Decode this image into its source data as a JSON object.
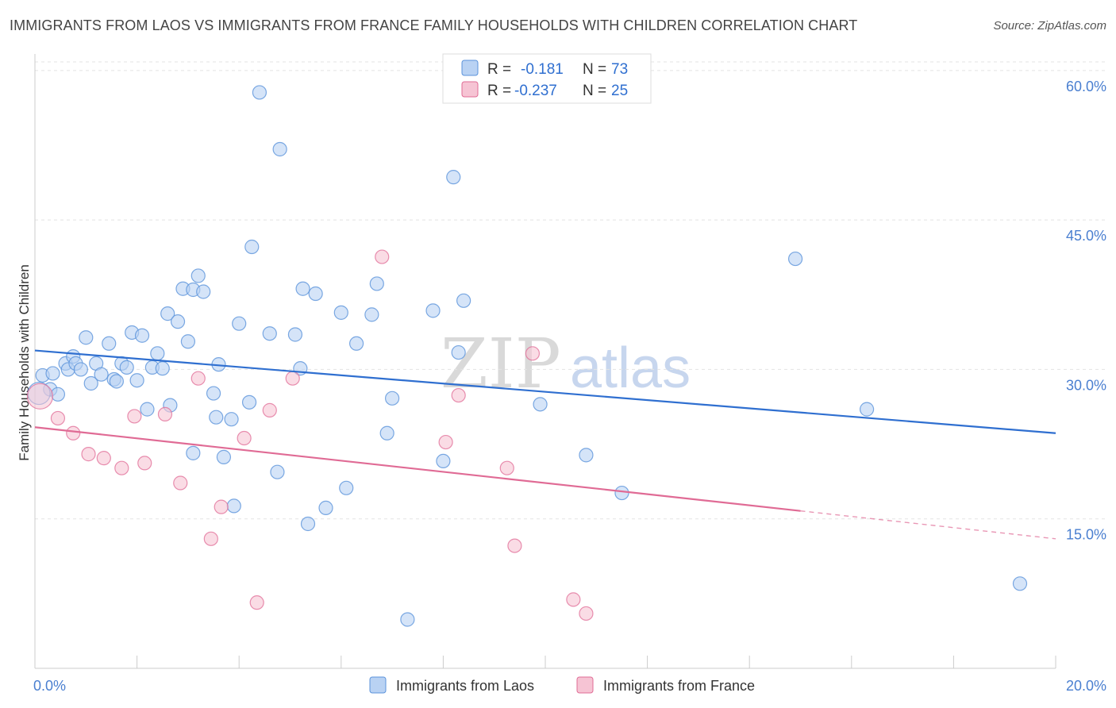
{
  "title": "IMMIGRANTS FROM LAOS VS IMMIGRANTS FROM FRANCE FAMILY HOUSEHOLDS WITH CHILDREN CORRELATION CHART",
  "source": "Source: ZipAtlas.com",
  "watermark": {
    "zip": "ZIP",
    "atlas": "atlas"
  },
  "colors": {
    "laos": "#5b93db",
    "laos_fill": "#b9d2f3",
    "france": "#e06b95",
    "france_fill": "#f6c4d4",
    "axis_label": "#4a7fd0"
  },
  "stats": [
    {
      "r_label": "R =",
      "r_value": "-0.181",
      "n_label": "N =",
      "n_value": "73"
    },
    {
      "r_label": "R =",
      "r_value": "-0.237",
      "n_label": "N =",
      "n_value": "25"
    }
  ],
  "chart_data": {
    "type": "scatter",
    "title": "IMMIGRANTS FROM LAOS VS IMMIGRANTS FROM FRANCE FAMILY HOUSEHOLDS WITH CHILDREN CORRELATION CHART",
    "xlabel": "",
    "ylabel": "Family Households with Children",
    "xlim": [
      0,
      20
    ],
    "ylim": [
      0,
      61.5
    ],
    "x_tick_labels": [
      "0.0%",
      "20.0%"
    ],
    "y_ticks": [
      15,
      30,
      45,
      60
    ],
    "y_tick_labels": [
      "15.0%",
      "30.0%",
      "45.0%",
      "60.0%"
    ],
    "legend_position": "bottom",
    "series": [
      {
        "name": "Immigrants from Laos",
        "trend": {
          "x": [
            0,
            20
          ],
          "y": [
            31.9,
            23.6
          ]
        },
        "points": [
          [
            0.15,
            29.4
          ],
          [
            0.3,
            28.0
          ],
          [
            0.35,
            29.6
          ],
          [
            0.45,
            27.5
          ],
          [
            0.6,
            30.6
          ],
          [
            0.65,
            30.0
          ],
          [
            0.75,
            31.3
          ],
          [
            0.8,
            30.6
          ],
          [
            0.9,
            30.0
          ],
          [
            1.0,
            33.2
          ],
          [
            1.1,
            28.6
          ],
          [
            1.2,
            30.6
          ],
          [
            1.3,
            29.5
          ],
          [
            1.45,
            32.6
          ],
          [
            1.55,
            29.0
          ],
          [
            1.6,
            28.8
          ],
          [
            1.7,
            30.6
          ],
          [
            1.8,
            30.2
          ],
          [
            1.9,
            33.7
          ],
          [
            2.0,
            28.9
          ],
          [
            2.1,
            33.4
          ],
          [
            2.2,
            26.0
          ],
          [
            2.3,
            30.2
          ],
          [
            2.4,
            31.6
          ],
          [
            2.5,
            30.1
          ],
          [
            2.6,
            35.6
          ],
          [
            2.65,
            26.4
          ],
          [
            2.8,
            34.8
          ],
          [
            2.9,
            38.1
          ],
          [
            3.0,
            32.8
          ],
          [
            3.1,
            21.6
          ],
          [
            3.1,
            38.0
          ],
          [
            3.2,
            39.4
          ],
          [
            3.3,
            37.8
          ],
          [
            3.5,
            27.6
          ],
          [
            3.55,
            25.2
          ],
          [
            3.6,
            30.5
          ],
          [
            3.7,
            21.2
          ],
          [
            3.85,
            25.0
          ],
          [
            3.9,
            16.3
          ],
          [
            4.0,
            34.6
          ],
          [
            4.2,
            26.7
          ],
          [
            4.25,
            42.3
          ],
          [
            4.4,
            57.8
          ],
          [
            4.6,
            33.6
          ],
          [
            4.75,
            19.7
          ],
          [
            4.8,
            52.1
          ],
          [
            5.1,
            33.5
          ],
          [
            5.2,
            30.1
          ],
          [
            5.25,
            38.1
          ],
          [
            5.35,
            14.5
          ],
          [
            5.5,
            37.6
          ],
          [
            5.7,
            16.1
          ],
          [
            6.0,
            35.7
          ],
          [
            6.1,
            18.1
          ],
          [
            6.3,
            32.6
          ],
          [
            6.6,
            35.5
          ],
          [
            6.7,
            38.6
          ],
          [
            6.9,
            23.6
          ],
          [
            7.0,
            27.1
          ],
          [
            7.3,
            4.9
          ],
          [
            7.8,
            35.9
          ],
          [
            8.0,
            20.8
          ],
          [
            8.2,
            49.3
          ],
          [
            8.3,
            31.7
          ],
          [
            8.4,
            36.9
          ],
          [
            9.9,
            26.5
          ],
          [
            10.8,
            21.4
          ],
          [
            11.5,
            17.6
          ],
          [
            14.9,
            41.1
          ],
          [
            16.3,
            26.0
          ],
          [
            19.3,
            8.5
          ],
          [
            0.08,
            27.6
          ]
        ]
      },
      {
        "name": "Immigrants from France",
        "trend": {
          "x": [
            0,
            15
          ],
          "y": [
            24.2,
            15.8
          ]
        },
        "trend_dashed": {
          "x": [
            15,
            20
          ],
          "y": [
            15.8,
            13.0
          ]
        },
        "points": [
          [
            0.1,
            27.3
          ],
          [
            0.45,
            25.1
          ],
          [
            0.75,
            23.6
          ],
          [
            1.05,
            21.5
          ],
          [
            1.35,
            21.1
          ],
          [
            1.7,
            20.1
          ],
          [
            1.95,
            25.3
          ],
          [
            2.15,
            20.6
          ],
          [
            2.55,
            25.5
          ],
          [
            2.85,
            18.6
          ],
          [
            3.2,
            29.1
          ],
          [
            3.45,
            13.0
          ],
          [
            3.65,
            16.2
          ],
          [
            4.1,
            23.1
          ],
          [
            4.35,
            6.6
          ],
          [
            4.6,
            25.9
          ],
          [
            5.05,
            29.1
          ],
          [
            6.8,
            41.3
          ],
          [
            8.05,
            22.7
          ],
          [
            8.3,
            27.4
          ],
          [
            9.25,
            20.1
          ],
          [
            9.4,
            12.3
          ],
          [
            9.75,
            31.6
          ],
          [
            10.55,
            6.9
          ],
          [
            10.8,
            5.5
          ]
        ]
      }
    ]
  }
}
